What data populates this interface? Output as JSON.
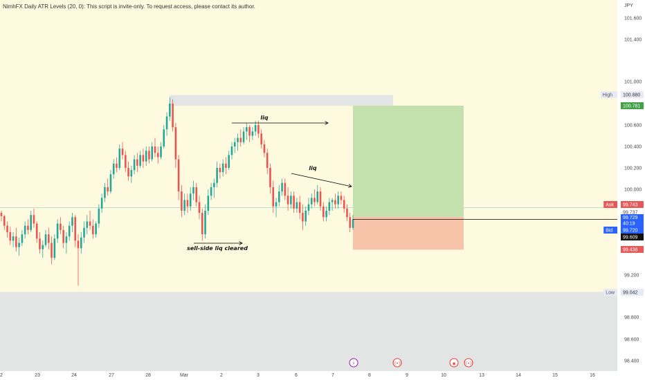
{
  "indicator": {
    "title": "NimhFX Daily ATR Levels (20, 0): This script is invite-only. To request access, please contact its author."
  },
  "currency_label": "JPY",
  "colors": {
    "chart_bg": "#fefae0",
    "zone_grey": "#e3e4e4",
    "up_candle": "#26a69a",
    "down_candle": "#ef5350",
    "profit_zone": "#c3e1ac",
    "loss_zone": "#f7c4aa",
    "ask_tag": "#e45a5a",
    "bid_tag": "#2962ff",
    "high_tag": "#e8eaf6",
    "target_tag": "#43a047",
    "stop_tag": "#e45a5a"
  },
  "chart_data": {
    "type": "candlestick",
    "title": "",
    "ylabel": "",
    "xlabel": "",
    "y_ticks": [
      "101.600",
      "101.400",
      "101.000",
      "100.600",
      "100.400",
      "100.200",
      "100.000",
      "99.200",
      "98.800",
      "98.600",
      "98.400"
    ],
    "x_ticks": [
      "2",
      "23",
      "24",
      "27",
      "28",
      "Mar",
      "2",
      "3",
      "6",
      "7",
      "8",
      "9",
      "10",
      "13",
      "14",
      "15",
      "16"
    ],
    "price_tags": [
      {
        "label": "High",
        "value": "100.880",
        "style": "high"
      },
      {
        "label": "",
        "value": "100.781",
        "style": "target"
      },
      {
        "label": "Ask",
        "value": "99.743",
        "style": "ask"
      },
      {
        "label": "",
        "value": "99.737",
        "style": "plain"
      },
      {
        "label": "",
        "value": "99.729",
        "extra": "40:19",
        "style": "bid"
      },
      {
        "label": "Bid",
        "value": "99.720",
        "style": "bid"
      },
      {
        "label": "",
        "value": "99.609",
        "style": "black"
      },
      {
        "label": "",
        "value": "99.436",
        "style": "stop"
      },
      {
        "label": "Low",
        "value": "99.042",
        "style": "low"
      }
    ],
    "zones": {
      "premium_top": 100.88,
      "premium_bottom": 100.78,
      "discount_top": 99.042,
      "take_profit": 100.781,
      "entry": 99.743,
      "stop_loss": 99.436
    },
    "current_price": 99.72,
    "annotations": [
      {
        "text": "liq"
      },
      {
        "text": "liq"
      },
      {
        "text": "sell-side liq cleared"
      }
    ],
    "event_markers": [
      "⚡",
      "((•))",
      "◉",
      "((•))"
    ],
    "series": [
      {
        "ohlc": [
          [
            99.78,
            99.8,
            99.7,
            99.75
          ],
          [
            99.75,
            99.76,
            99.62,
            99.66
          ],
          [
            99.66,
            99.7,
            99.55,
            99.6
          ],
          [
            99.6,
            99.65,
            99.48,
            99.52
          ],
          [
            99.52,
            99.6,
            99.46,
            99.56
          ],
          [
            99.56,
            99.64,
            99.42,
            99.46
          ],
          [
            99.46,
            99.55,
            99.38,
            99.5
          ],
          [
            99.5,
            99.62,
            99.47,
            99.58
          ],
          [
            99.58,
            99.7,
            99.54,
            99.66
          ],
          [
            99.66,
            99.72,
            99.58,
            99.62
          ],
          [
            99.62,
            99.8,
            99.6,
            99.76
          ],
          [
            99.76,
            99.82,
            99.64,
            99.68
          ],
          [
            99.68,
            99.7,
            99.5,
            99.54
          ],
          [
            99.54,
            99.6,
            99.4,
            99.44
          ],
          [
            99.44,
            99.52,
            99.36,
            99.48
          ],
          [
            99.48,
            99.62,
            99.46,
            99.58
          ],
          [
            99.58,
            99.64,
            99.44,
            99.5
          ],
          [
            99.5,
            99.56,
            99.3,
            99.36
          ],
          [
            99.36,
            99.58,
            99.34,
            99.54
          ],
          [
            99.54,
            99.72,
            99.5,
            99.68
          ],
          [
            99.68,
            99.74,
            99.58,
            99.62
          ],
          [
            99.62,
            99.66,
            99.45,
            99.5
          ],
          [
            99.5,
            99.6,
            99.4,
            99.56
          ],
          [
            99.56,
            99.7,
            99.52,
            99.66
          ],
          [
            99.66,
            99.78,
            99.6,
            99.74
          ],
          [
            99.74,
            99.76,
            99.46,
            99.52
          ],
          [
            99.52,
            99.58,
            99.1,
            99.45
          ],
          [
            99.45,
            99.6,
            99.4,
            99.55
          ],
          [
            99.55,
            99.7,
            99.5,
            99.64
          ],
          [
            99.64,
            99.76,
            99.58,
            99.7
          ],
          [
            99.7,
            99.8,
            99.62,
            99.66
          ],
          [
            99.66,
            99.72,
            99.54,
            99.58
          ],
          [
            99.58,
            99.7,
            99.55,
            99.68
          ],
          [
            99.68,
            99.86,
            99.64,
            99.82
          ],
          [
            99.82,
            99.96,
            99.78,
            99.92
          ],
          [
            99.92,
            100.06,
            99.88,
            100.02
          ],
          [
            100.02,
            100.1,
            99.94,
            99.98
          ],
          [
            99.98,
            100.18,
            99.96,
            100.14
          ],
          [
            100.14,
            100.28,
            100.1,
            100.24
          ],
          [
            100.24,
            100.3,
            100.16,
            100.2
          ],
          [
            100.2,
            100.42,
            100.18,
            100.38
          ],
          [
            100.38,
            100.44,
            100.28,
            100.32
          ],
          [
            100.32,
            100.36,
            100.16,
            100.2
          ],
          [
            100.2,
            100.26,
            100.08,
            100.12
          ],
          [
            100.12,
            100.22,
            100.06,
            100.18
          ],
          [
            100.18,
            100.32,
            100.14,
            100.28
          ],
          [
            100.28,
            100.34,
            100.16,
            100.22
          ],
          [
            100.22,
            100.36,
            100.2,
            100.32
          ],
          [
            100.32,
            100.38,
            100.2,
            100.26
          ],
          [
            100.26,
            100.4,
            100.22,
            100.36
          ],
          [
            100.36,
            100.4,
            100.24,
            100.28
          ],
          [
            100.28,
            100.44,
            100.26,
            100.4
          ],
          [
            100.4,
            100.48,
            100.3,
            100.34
          ],
          [
            100.34,
            100.4,
            100.24,
            100.3
          ],
          [
            100.3,
            100.44,
            100.28,
            100.4
          ],
          [
            100.4,
            100.6,
            100.38,
            100.56
          ],
          [
            100.56,
            100.72,
            100.5,
            100.68
          ],
          [
            100.68,
            100.86,
            100.64,
            100.8
          ],
          [
            100.8,
            100.84,
            100.54,
            100.58
          ],
          [
            100.58,
            100.62,
            100.2,
            100.28
          ],
          [
            100.28,
            100.32,
            99.9,
            99.98
          ],
          [
            99.98,
            100.04,
            99.74,
            99.8
          ],
          [
            99.8,
            99.96,
            99.76,
            99.9
          ],
          [
            99.9,
            99.96,
            99.78,
            99.84
          ],
          [
            99.84,
            100.02,
            99.8,
            99.96
          ],
          [
            99.96,
            100.08,
            99.9,
            100.02
          ],
          [
            100.02,
            100.06,
            99.84,
            99.88
          ],
          [
            99.88,
            99.94,
            99.72,
            99.78
          ],
          [
            99.78,
            99.82,
            99.52,
            99.58
          ],
          [
            99.58,
            99.86,
            99.54,
            99.8
          ],
          [
            99.8,
            100.0,
            99.76,
            99.94
          ],
          [
            99.94,
            100.06,
            99.9,
            100.02
          ],
          [
            100.02,
            100.1,
            99.92,
            100.06
          ],
          [
            100.06,
            100.26,
            100.02,
            100.2
          ],
          [
            100.2,
            100.24,
            100.1,
            100.16
          ],
          [
            100.16,
            100.28,
            100.12,
            100.24
          ],
          [
            100.24,
            100.3,
            100.14,
            100.2
          ],
          [
            100.2,
            100.36,
            100.18,
            100.32
          ],
          [
            100.32,
            100.44,
            100.28,
            100.4
          ],
          [
            100.4,
            100.48,
            100.34,
            100.44
          ],
          [
            100.44,
            100.52,
            100.36,
            100.48
          ],
          [
            100.48,
            100.56,
            100.4,
            100.44
          ],
          [
            100.44,
            100.58,
            100.42,
            100.54
          ],
          [
            100.54,
            100.62,
            100.46,
            100.58
          ],
          [
            100.58,
            100.6,
            100.44,
            100.5
          ],
          [
            100.5,
            100.58,
            100.46,
            100.54
          ],
          [
            100.54,
            100.64,
            100.5,
            100.6
          ],
          [
            100.6,
            100.64,
            100.48,
            100.52
          ],
          [
            100.52,
            100.56,
            100.38,
            100.42
          ],
          [
            100.42,
            100.46,
            100.3,
            100.34
          ],
          [
            100.34,
            100.38,
            100.14,
            100.2
          ],
          [
            100.2,
            100.24,
            99.96,
            100.02
          ],
          [
            100.02,
            100.08,
            99.78,
            99.84
          ],
          [
            99.84,
            99.92,
            99.74,
            99.88
          ],
          [
            99.88,
            100.04,
            99.84,
            99.98
          ],
          [
            99.98,
            100.1,
            99.94,
            100.06
          ],
          [
            100.06,
            100.1,
            99.9,
            99.94
          ],
          [
            99.94,
            100.02,
            99.8,
            99.86
          ],
          [
            99.86,
            99.98,
            99.82,
            99.94
          ],
          [
            99.94,
            99.98,
            99.78,
            99.82
          ],
          [
            99.82,
            99.92,
            99.78,
            99.88
          ],
          [
            99.88,
            99.94,
            99.72,
            99.78
          ],
          [
            99.78,
            99.86,
            99.62,
            99.7
          ],
          [
            99.7,
            99.84,
            99.66,
            99.8
          ],
          [
            99.8,
            99.92,
            99.76,
            99.86
          ],
          [
            99.86,
            99.96,
            99.82,
            99.92
          ],
          [
            99.92,
            100.0,
            99.84,
            99.88
          ],
          [
            99.88,
            100.04,
            99.86,
            99.98
          ],
          [
            99.98,
            100.02,
            99.8,
            99.84
          ],
          [
            99.84,
            99.88,
            99.7,
            99.74
          ],
          [
            99.74,
            99.84,
            99.7,
            99.8
          ],
          [
            99.8,
            99.92,
            99.76,
            99.88
          ],
          [
            99.88,
            99.92,
            99.8,
            99.9
          ],
          [
            99.9,
            99.96,
            99.82,
            99.86
          ],
          [
            99.86,
            99.98,
            99.82,
            99.94
          ],
          [
            99.94,
            99.98,
            99.86,
            99.9
          ],
          [
            99.9,
            99.94,
            99.78,
            99.82
          ],
          [
            99.82,
            99.86,
            99.7,
            99.74
          ],
          [
            99.74,
            99.78,
            99.6,
            99.64
          ],
          [
            99.64,
            99.76,
            99.62,
            99.72
          ]
        ]
      }
    ]
  }
}
